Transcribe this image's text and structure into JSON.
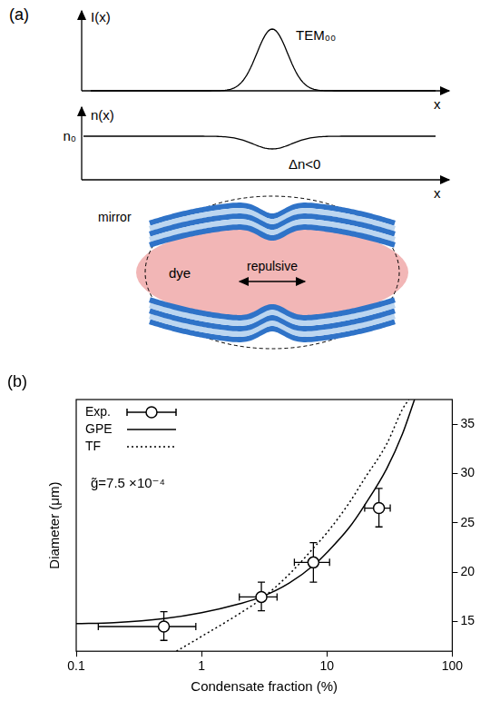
{
  "figure": {
    "panel_a": {
      "label": "(a)",
      "intensity_plot": {
        "y_label": "I(x)",
        "x_label": "x",
        "curve_label": "TEM₀₀"
      },
      "index_plot": {
        "y_label": "n(x)",
        "x_label": "x",
        "level_label": "n₀",
        "dip_label": "Δn<0"
      },
      "cavity": {
        "mirror_label": "mirror",
        "medium_label": "dye",
        "interaction_label": "repulsive"
      }
    }
  },
  "chart_data": {
    "panel_label": "(b)",
    "type": "scatter",
    "x_label": "Condensate fraction (%)",
    "y_label": "Diameter (μm)",
    "annotation": "g̃=7.5 ×10⁻⁴",
    "log": "x",
    "grid": false,
    "legend": "upper left",
    "xlim": [
      0.1,
      100
    ],
    "xticks": [
      0.1,
      1,
      10,
      100
    ],
    "ylim": [
      12,
      37.5
    ],
    "yticks": [
      15,
      20,
      25,
      30,
      35
    ],
    "series": [
      {
        "name": "Exp.",
        "type": "scatter",
        "marker": "circle",
        "color": "#000000",
        "x": [
          0.5,
          3.0,
          7.8,
          26
        ],
        "values": [
          14.5,
          17.5,
          21.0,
          26.5
        ],
        "x_bounds": [
          [
            0.15,
            0.9
          ],
          [
            2.0,
            4.0
          ],
          [
            5.5,
            10.5
          ],
          [
            20,
            32
          ]
        ],
        "y_bounds": [
          [
            13.1,
            16.0
          ],
          [
            16.1,
            19.0
          ],
          [
            19.0,
            23.0
          ],
          [
            24.6,
            28.5
          ]
        ]
      },
      {
        "name": "GPE",
        "type": "line",
        "line_style": "solid",
        "color": "#000000",
        "x": [
          0.1,
          0.2,
          0.5,
          1,
          2,
          3,
          5,
          8,
          10,
          15,
          20,
          30,
          40,
          50
        ],
        "values": [
          14.8,
          14.9,
          15.3,
          15.9,
          16.8,
          17.5,
          18.9,
          20.8,
          22.0,
          24.5,
          26.8,
          30.5,
          34.0,
          37.5
        ]
      },
      {
        "name": "TF",
        "type": "line",
        "line_style": "dotted",
        "color": "#000000",
        "x": [
          0.63,
          1,
          2,
          3,
          5,
          8,
          10,
          15,
          20,
          30,
          40,
          45
        ],
        "values": [
          12.0,
          13.5,
          15.8,
          17.3,
          19.8,
          22.6,
          24.0,
          27.0,
          29.5,
          33.0,
          36.5,
          37.5
        ]
      }
    ]
  }
}
